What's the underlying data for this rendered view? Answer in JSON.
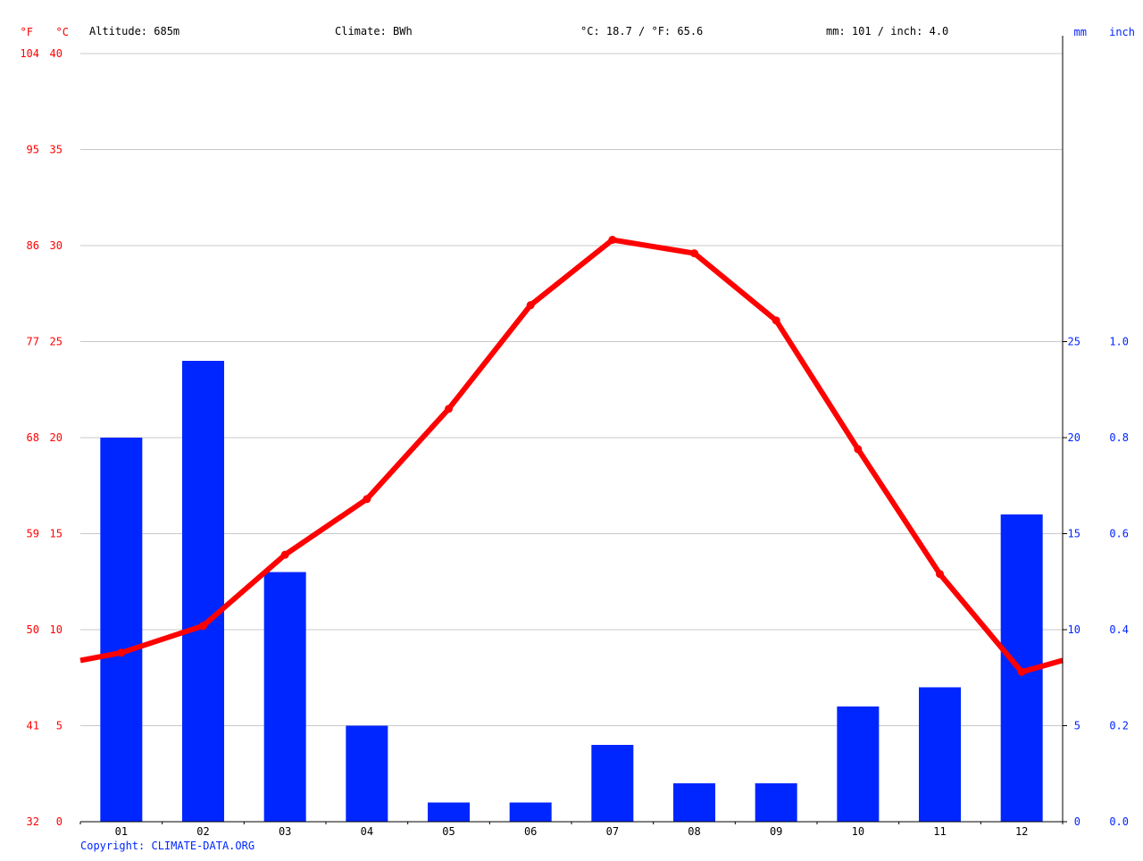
{
  "header": {
    "altitude": "Altitude: 685m",
    "climate": "Climate: BWh",
    "temperature": "°C: 18.7 / °F: 65.6",
    "precipitation": "mm: 101 / inch: 4.0"
  },
  "footer": {
    "copyright": "Copyright: CLIMATE-DATA.ORG"
  },
  "colors": {
    "temperature": "#ff0000",
    "precipitation": "#0026ff",
    "grid": "#c8c8c8",
    "axis": "#000000"
  },
  "chart_data": {
    "type": "bar",
    "categories": [
      "01",
      "02",
      "03",
      "04",
      "05",
      "06",
      "07",
      "08",
      "09",
      "10",
      "11",
      "12"
    ],
    "series": [
      {
        "type": "bar",
        "axis": "right",
        "values": [
          20,
          24,
          13,
          5,
          1,
          1,
          4,
          2,
          2,
          6,
          7,
          16
        ]
      },
      {
        "type": "line",
        "axis": "left",
        "values": [
          8.8,
          10.2,
          13.9,
          16.8,
          21.5,
          26.9,
          30.3,
          29.6,
          26.1,
          19.4,
          12.9,
          7.8
        ],
        "edge_values": [
          8.4,
          8.4
        ]
      }
    ],
    "left_axis_c": {
      "label": "°C",
      "range": [
        0,
        40
      ],
      "ticks": [
        "0",
        "5",
        "10",
        "15",
        "20",
        "25",
        "30",
        "35",
        "40"
      ]
    },
    "left_axis_f": {
      "label": "°F",
      "ticks": [
        "32",
        "41",
        "50",
        "59",
        "68",
        "77",
        "86",
        "95",
        "104"
      ]
    },
    "right_axis_mm": {
      "label": "mm",
      "range": [
        0,
        40
      ],
      "ticks": [
        "0",
        "5",
        "10",
        "15",
        "20",
        "25"
      ]
    },
    "right_axis_inch": {
      "label": "inch",
      "ticks": [
        "0.0",
        "0.2",
        "0.4",
        "0.6",
        "0.8",
        "1.0"
      ]
    },
    "grid": true
  }
}
